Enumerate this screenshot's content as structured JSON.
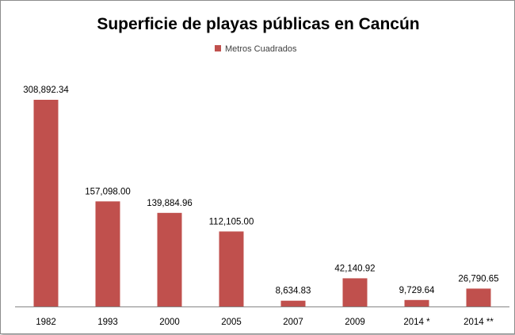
{
  "chart_data": {
    "type": "bar",
    "title": "Superficie de playas públicas en Cancún",
    "categories": [
      "1982",
      "1993",
      "2000",
      "2005",
      "2007",
      "2009",
      "2014 *",
      "2014 **"
    ],
    "series": [
      {
        "name": "Metros Cuadrados",
        "values": [
          308892.34,
          157098.0,
          139884.96,
          112105.0,
          8634.83,
          42140.92,
          9729.64,
          26790.65
        ],
        "labels": [
          "308,892.34",
          "157,098.00",
          "139,884.96",
          "112,105.00",
          "8,634.83",
          "42,140.92",
          "9,729.64",
          "26,790.65"
        ]
      }
    ],
    "ylim": [
      0,
      308892.34
    ],
    "grid": false,
    "legend_position": "top",
    "colors": {
      "bar": "#c0504d",
      "axis": "#868686"
    }
  }
}
